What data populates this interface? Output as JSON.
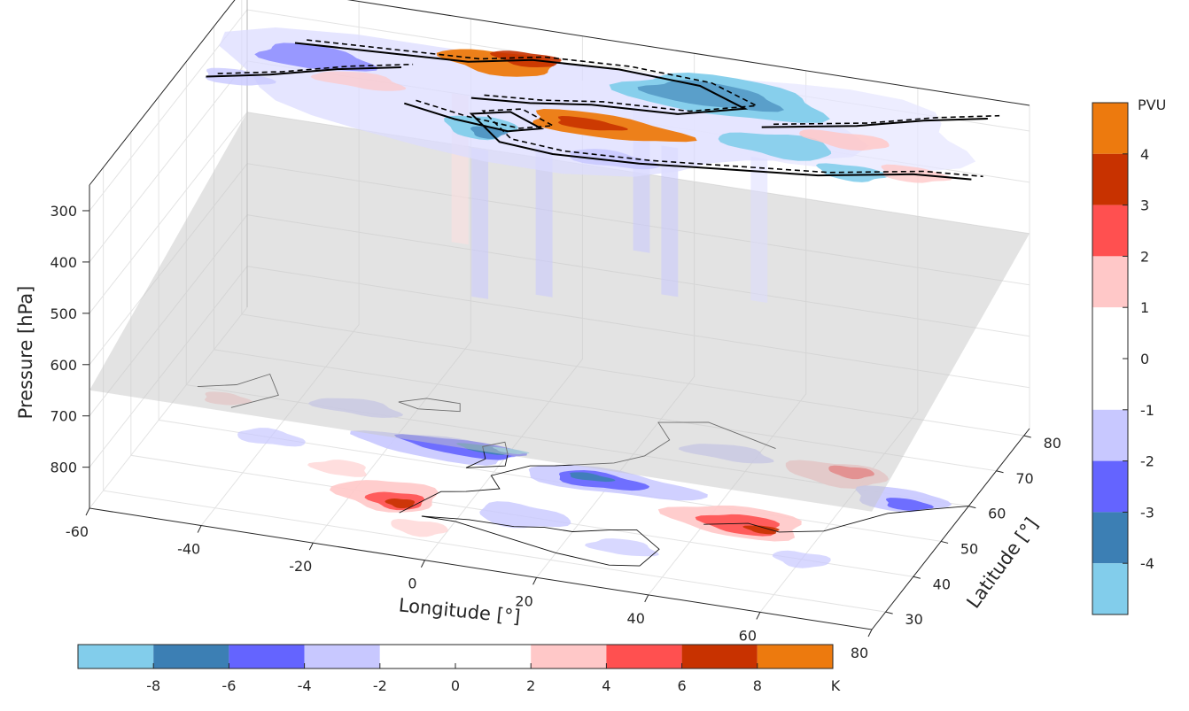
{
  "chart_data": {
    "type": "3d-contour",
    "xlabel": "Longitude [°]",
    "ylabel": "Latitude [°]",
    "zlabel": "Pressure [hPa]",
    "x_ticks": [
      "-60",
      "-40",
      "-20",
      "0",
      "20",
      "40",
      "60",
      "80"
    ],
    "y_ticks": [
      "30",
      "40",
      "50",
      "60",
      "70",
      "80"
    ],
    "z_ticks": [
      "300",
      "400",
      "500",
      "600",
      "700",
      "800"
    ],
    "xlim": [
      -60,
      80
    ],
    "ylim": [
      25,
      82
    ],
    "zlim": [
      880,
      250
    ],
    "z_reversed": true,
    "grid": true,
    "layers": [
      {
        "name": "upper",
        "pressure_hPa": 250,
        "field": "PV anomaly",
        "unit": "PVU",
        "contours": "solid and dashed black"
      },
      {
        "name": "middle",
        "pressure_hPa": 500,
        "field": "translucent grey plane"
      },
      {
        "name": "surface",
        "pressure_hPa": 880,
        "field": "temperature anomaly",
        "unit": "K",
        "coastlines": true
      }
    ],
    "colorbar_pv": {
      "orientation": "vertical",
      "unit": "PVU",
      "tick_labels": [
        "4",
        "3",
        "2",
        "1",
        "0",
        "-1",
        "-2",
        "-3",
        "-4"
      ],
      "colors_top_to_bottom": [
        "#ed7a0e",
        "#c83200",
        "#ff5050",
        "#ffc8c8",
        "#ffffff",
        "#ffffff",
        "#c8c8ff",
        "#6464ff",
        "#3c7fb4",
        "#82cdeb"
      ]
    },
    "colorbar_temp": {
      "orientation": "horizontal",
      "unit": "K",
      "tick_labels": [
        "-8",
        "-6",
        "-4",
        "-2",
        "0",
        "2",
        "4",
        "6",
        "8"
      ],
      "colors_left_to_right": [
        "#82cdeb",
        "#3c7fb4",
        "#6464ff",
        "#c8c8ff",
        "#ffffff",
        "#ffffff",
        "#ffc8c8",
        "#ff5050",
        "#c83200",
        "#ed7a0e"
      ]
    }
  }
}
